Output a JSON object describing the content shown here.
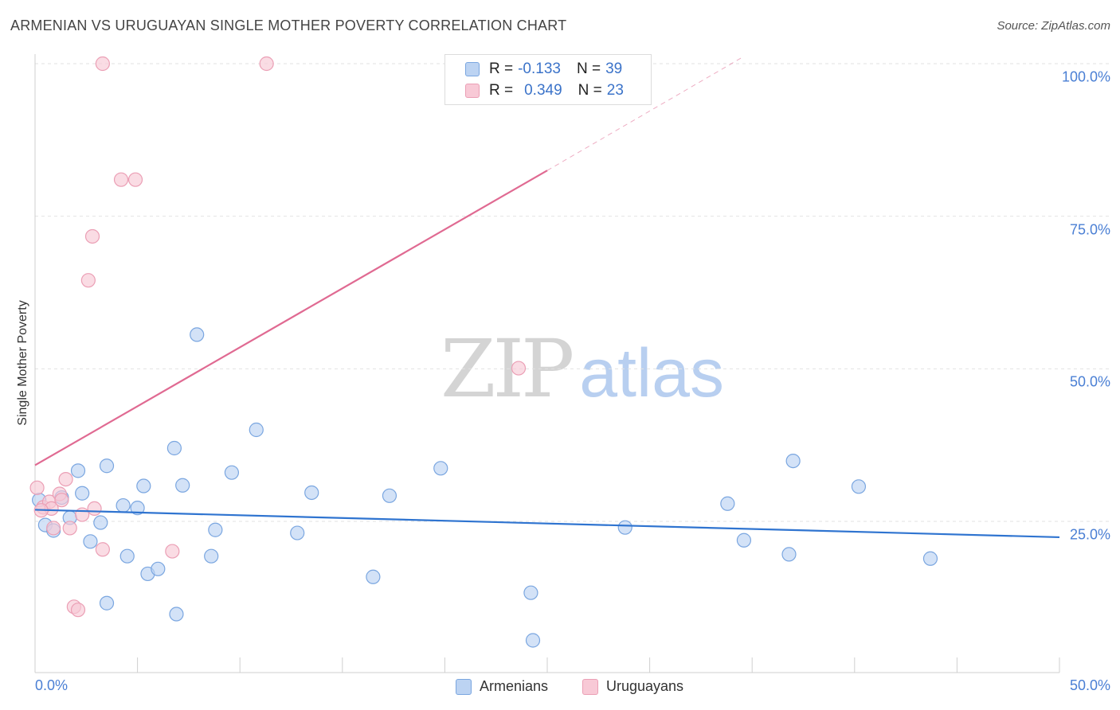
{
  "title": "ARMENIAN VS URUGUAYAN SINGLE MOTHER POVERTY CORRELATION CHART",
  "source": "Source: ZipAtlas.com",
  "watermark": {
    "zip": "ZIP",
    "atlas": "atlas"
  },
  "legend_top": {
    "rows": [
      {
        "r_label": "R =",
        "r_value": "-0.133",
        "n_label": "N =",
        "n_value": "39"
      },
      {
        "r_label": "R =",
        "r_value": "0.349",
        "n_label": "N =",
        "n_value": "23"
      }
    ]
  },
  "legend_bottom": {
    "series1": "Armenians",
    "series2": "Uruguayans"
  },
  "colors": {
    "armenian_fill": "#bcd3f2",
    "armenian_stroke": "#7aa6e0",
    "armenian_line": "#2f74d0",
    "uruguayan_fill": "#f8c9d6",
    "uruguayan_stroke": "#eb9fb5",
    "uruguayan_line": "#e06a92",
    "tick_text": "#4a7fd4",
    "grid": "#e2e2e2"
  },
  "chart_data": {
    "type": "scatter",
    "title": "ARMENIAN VS URUGUAYAN SINGLE MOTHER POVERTY CORRELATION CHART",
    "xlabel": "",
    "ylabel": "Single Mother Poverty",
    "xlim": [
      0,
      50
    ],
    "ylim": [
      0,
      102
    ],
    "x_tick_labels": [
      "0.0%",
      "50.0%"
    ],
    "y_ticks": [
      {
        "value": 25,
        "label": "25.0%"
      },
      {
        "value": 50,
        "label": "50.0%"
      },
      {
        "value": 75,
        "label": "75.0%"
      },
      {
        "value": 100,
        "label": "100.0%"
      }
    ],
    "series": [
      {
        "name": "Armenians",
        "r": -0.133,
        "n": 39,
        "trend": {
          "x0": 0,
          "y0": 26.9,
          "x1": 50,
          "y1": 22.4
        },
        "points": [
          [
            0.2,
            28.5
          ],
          [
            0.5,
            24.4
          ],
          [
            0.9,
            23.5
          ],
          [
            1.3,
            28.9
          ],
          [
            1.7,
            25.6
          ],
          [
            2.1,
            33.3
          ],
          [
            2.3,
            29.6
          ],
          [
            2.7,
            21.7
          ],
          [
            3.2,
            24.8
          ],
          [
            3.5,
            11.6
          ],
          [
            3.5,
            34.1
          ],
          [
            4.3,
            27.6
          ],
          [
            4.5,
            19.3
          ],
          [
            5.0,
            27.2
          ],
          [
            5.3,
            30.8
          ],
          [
            5.5,
            16.4
          ],
          [
            6.0,
            17.2
          ],
          [
            6.8,
            37.0
          ],
          [
            6.9,
            9.8
          ],
          [
            7.2,
            30.9
          ],
          [
            7.9,
            55.6
          ],
          [
            8.6,
            19.3
          ],
          [
            8.8,
            23.6
          ],
          [
            9.6,
            33.0
          ],
          [
            10.8,
            40.0
          ],
          [
            12.8,
            23.1
          ],
          [
            13.5,
            29.7
          ],
          [
            16.5,
            15.9
          ],
          [
            17.3,
            29.2
          ],
          [
            19.8,
            33.7
          ],
          [
            24.2,
            13.3
          ],
          [
            24.3,
            5.5
          ],
          [
            28.8,
            24.0
          ],
          [
            33.8,
            27.9
          ],
          [
            34.6,
            21.9
          ],
          [
            36.8,
            19.6
          ],
          [
            37.0,
            34.9
          ],
          [
            40.2,
            30.7
          ],
          [
            43.7,
            18.9
          ]
        ]
      },
      {
        "name": "Uruguayans",
        "r": 0.349,
        "n": 23,
        "trend": {
          "x0": 0,
          "y0": 34.2,
          "x1": 25,
          "y1": 82.5
        },
        "trend_dashed": {
          "x0": 25,
          "y0": 82.5,
          "x1": 34.5,
          "y1": 101
        },
        "points": [
          [
            0.1,
            30.5
          ],
          [
            0.4,
            27.3
          ],
          [
            0.7,
            28.2
          ],
          [
            0.8,
            27.1
          ],
          [
            0.9,
            23.9
          ],
          [
            1.2,
            29.5
          ],
          [
            1.3,
            28.5
          ],
          [
            1.5,
            31.9
          ],
          [
            1.7,
            23.9
          ],
          [
            1.9,
            11.0
          ],
          [
            2.1,
            10.5
          ],
          [
            2.3,
            26.1
          ],
          [
            2.6,
            64.5
          ],
          [
            2.8,
            71.7
          ],
          [
            2.9,
            27.1
          ],
          [
            3.3,
            20.4
          ],
          [
            3.3,
            100.0
          ],
          [
            4.2,
            81.0
          ],
          [
            4.9,
            81.0
          ],
          [
            6.7,
            20.1
          ],
          [
            11.3,
            100.0
          ],
          [
            23.6,
            50.1
          ],
          [
            0.3,
            26.8
          ]
        ]
      }
    ]
  }
}
